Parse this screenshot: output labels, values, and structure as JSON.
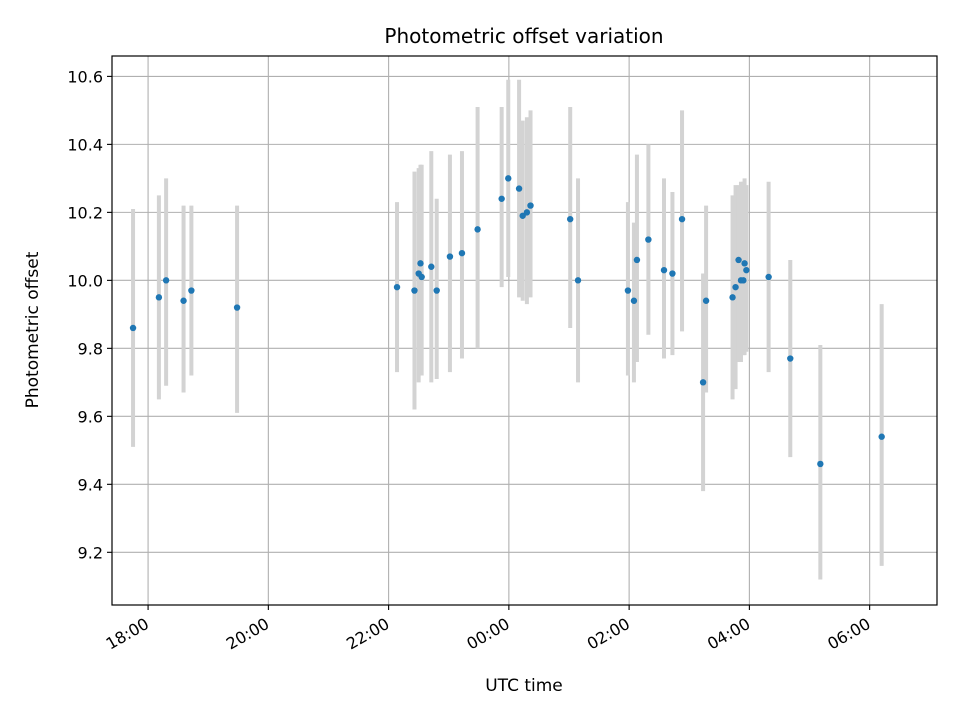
{
  "chart_data": {
    "type": "scatter",
    "title": "Photometric offset variation",
    "xlabel": "UTC time",
    "ylabel": "Photometric offset",
    "x_unit": "hours",
    "xlim": [
      -6.6,
      7.12
    ],
    "ylim": [
      9.045,
      10.66
    ],
    "grid": true,
    "x_ticks": [
      {
        "value": -6,
        "label": "18:00"
      },
      {
        "value": -4,
        "label": "20:00"
      },
      {
        "value": -2,
        "label": "22:00"
      },
      {
        "value": 0,
        "label": "00:00"
      },
      {
        "value": 2,
        "label": "02:00"
      },
      {
        "value": 4,
        "label": "04:00"
      },
      {
        "value": 6,
        "label": "06:00"
      }
    ],
    "y_ticks": [
      {
        "value": 9.2,
        "label": "9.2"
      },
      {
        "value": 9.4,
        "label": "9.4"
      },
      {
        "value": 9.6,
        "label": "9.6"
      },
      {
        "value": 9.8,
        "label": "9.8"
      },
      {
        "value": 10.0,
        "label": "10.0"
      },
      {
        "value": 10.2,
        "label": "10.2"
      },
      {
        "value": 10.4,
        "label": "10.4"
      },
      {
        "value": 10.6,
        "label": "10.6"
      }
    ],
    "colors": {
      "point": "#1f77b4",
      "errorbar": "#d3d3d3",
      "grid": "#b0b0b0"
    },
    "series": [
      {
        "points": [
          {
            "x": -6.25,
            "y": 9.86,
            "lo": 9.51,
            "hi": 10.21
          },
          {
            "x": -5.82,
            "y": 9.95,
            "lo": 9.65,
            "hi": 10.25
          },
          {
            "x": -5.7,
            "y": 10.0,
            "lo": 9.69,
            "hi": 10.3
          },
          {
            "x": -5.41,
            "y": 9.94,
            "lo": 9.67,
            "hi": 10.22
          },
          {
            "x": -5.28,
            "y": 9.97,
            "lo": 9.72,
            "hi": 10.22
          },
          {
            "x": -4.52,
            "y": 9.92,
            "lo": 9.61,
            "hi": 10.22
          },
          {
            "x": -1.86,
            "y": 9.98,
            "lo": 9.73,
            "hi": 10.23
          },
          {
            "x": -1.57,
            "y": 9.97,
            "lo": 9.62,
            "hi": 10.32
          },
          {
            "x": -1.5,
            "y": 10.02,
            "lo": 9.7,
            "hi": 10.33
          },
          {
            "x": -1.47,
            "y": 10.05,
            "lo": 9.73,
            "hi": 10.34
          },
          {
            "x": -1.45,
            "y": 10.01,
            "lo": 9.72,
            "hi": 10.34
          },
          {
            "x": -1.29,
            "y": 10.04,
            "lo": 9.7,
            "hi": 10.38
          },
          {
            "x": -1.2,
            "y": 9.97,
            "lo": 9.71,
            "hi": 10.24
          },
          {
            "x": -0.98,
            "y": 10.07,
            "lo": 9.73,
            "hi": 10.37
          },
          {
            "x": -0.78,
            "y": 10.08,
            "lo": 9.77,
            "hi": 10.38
          },
          {
            "x": -0.52,
            "y": 10.15,
            "lo": 9.8,
            "hi": 10.51
          },
          {
            "x": -0.12,
            "y": 10.24,
            "lo": 9.98,
            "hi": 10.51
          },
          {
            "x": -0.01,
            "y": 10.3,
            "lo": 10.01,
            "hi": 10.59
          },
          {
            "x": 0.17,
            "y": 10.27,
            "lo": 9.95,
            "hi": 10.59
          },
          {
            "x": 0.23,
            "y": 10.19,
            "lo": 9.94,
            "hi": 10.47
          },
          {
            "x": 0.3,
            "y": 10.2,
            "lo": 9.93,
            "hi": 10.48
          },
          {
            "x": 0.36,
            "y": 10.22,
            "lo": 9.95,
            "hi": 10.5
          },
          {
            "x": 1.02,
            "y": 10.18,
            "lo": 9.86,
            "hi": 10.51
          },
          {
            "x": 1.15,
            "y": 10.0,
            "lo": 9.7,
            "hi": 10.3
          },
          {
            "x": 1.98,
            "y": 9.97,
            "lo": 9.72,
            "hi": 10.23
          },
          {
            "x": 2.08,
            "y": 9.94,
            "lo": 9.7,
            "hi": 10.17
          },
          {
            "x": 2.13,
            "y": 10.06,
            "lo": 9.76,
            "hi": 10.37
          },
          {
            "x": 2.32,
            "y": 10.12,
            "lo": 9.84,
            "hi": 10.4
          },
          {
            "x": 2.58,
            "y": 10.03,
            "lo": 9.77,
            "hi": 10.3
          },
          {
            "x": 2.72,
            "y": 10.02,
            "lo": 9.78,
            "hi": 10.26
          },
          {
            "x": 2.88,
            "y": 10.18,
            "lo": 9.85,
            "hi": 10.5
          },
          {
            "x": 3.23,
            "y": 9.7,
            "lo": 9.38,
            "hi": 10.02
          },
          {
            "x": 3.28,
            "y": 9.94,
            "lo": 9.67,
            "hi": 10.22
          },
          {
            "x": 3.72,
            "y": 9.95,
            "lo": 9.65,
            "hi": 10.25
          },
          {
            "x": 3.77,
            "y": 9.98,
            "lo": 9.68,
            "hi": 10.28
          },
          {
            "x": 3.82,
            "y": 10.06,
            "lo": 9.76,
            "hi": 10.28
          },
          {
            "x": 3.86,
            "y": 10.0,
            "lo": 9.76,
            "hi": 10.29
          },
          {
            "x": 3.9,
            "y": 10.0,
            "lo": 9.78,
            "hi": 10.29
          },
          {
            "x": 3.92,
            "y": 10.05,
            "lo": 9.78,
            "hi": 10.3
          },
          {
            "x": 3.95,
            "y": 10.03,
            "lo": 9.79,
            "hi": 10.28
          },
          {
            "x": 4.32,
            "y": 10.01,
            "lo": 9.73,
            "hi": 10.29
          },
          {
            "x": 4.68,
            "y": 9.77,
            "lo": 9.48,
            "hi": 10.06
          },
          {
            "x": 5.18,
            "y": 9.46,
            "lo": 9.12,
            "hi": 9.81
          },
          {
            "x": 6.2,
            "y": 9.54,
            "lo": 9.16,
            "hi": 9.93
          }
        ]
      }
    ]
  }
}
